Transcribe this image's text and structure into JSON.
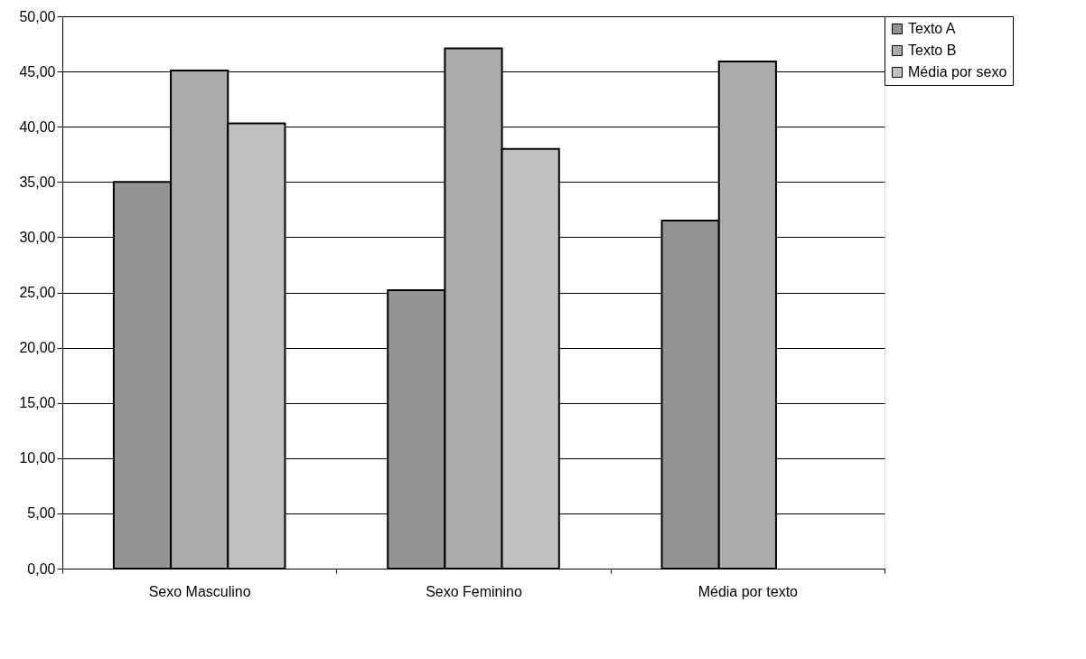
{
  "chart_data": {
    "type": "bar",
    "categories": [
      "Sexo Masculino",
      "Sexo Feminino",
      "Média por texto"
    ],
    "series": [
      {
        "name": "Texto A",
        "color": "#949494",
        "values": [
          35.0,
          25.2,
          31.5
        ]
      },
      {
        "name": "Texto B",
        "color": "#ababab",
        "values": [
          45.1,
          47.1,
          45.9
        ]
      },
      {
        "name": "Média por sexo",
        "color": "#c0c0c0",
        "values": [
          40.3,
          38.0,
          null
        ]
      }
    ],
    "ylim": [
      0,
      50
    ],
    "yticks": [
      {
        "value": 0,
        "label": "0,00"
      },
      {
        "value": 5,
        "label": "5,00"
      },
      {
        "value": 10,
        "label": "10,00"
      },
      {
        "value": 15,
        "label": "15,00"
      },
      {
        "value": 20,
        "label": "20,00"
      },
      {
        "value": 25,
        "label": "25,00"
      },
      {
        "value": 30,
        "label": "30,00"
      },
      {
        "value": 35,
        "label": "35,00"
      },
      {
        "value": 40,
        "label": "40,00"
      },
      {
        "value": 45,
        "label": "45,00"
      },
      {
        "value": 50,
        "label": "50,00"
      }
    ],
    "grid": "y",
    "legend": "right"
  }
}
